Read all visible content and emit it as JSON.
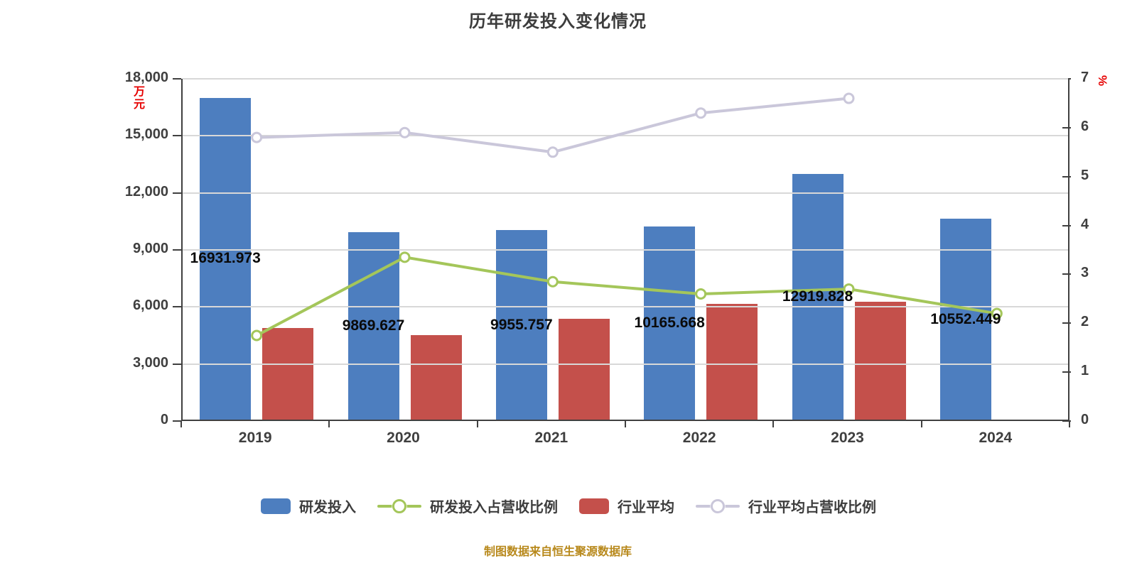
{
  "title": "历年研发投入变化情况",
  "source_note": "制图数据来自恒生聚源数据库",
  "units": {
    "left": "万元",
    "right": "%"
  },
  "colors": {
    "rd_bar": "#4d7ebf",
    "industry_bar": "#c4504b",
    "rd_ratio_line": "#a4c65a",
    "industry_ratio_line": "#cac7da",
    "axis_text": "#3f3f3f",
    "axis_line": "#404040",
    "grid_line": "#d8d8d8",
    "unit_text": "#e60000",
    "source_text": "#b8891c",
    "bar_label_text": "#0a0a0a"
  },
  "legend": [
    {
      "label": "研发投入",
      "swatch": "bar",
      "color": "#4d7ebf"
    },
    {
      "label": "研发投入占营收比例",
      "swatch": "line",
      "color": "#a4c65a"
    },
    {
      "label": "行业平均",
      "swatch": "bar",
      "color": "#c4504b"
    },
    {
      "label": "行业平均占营收比例",
      "swatch": "line",
      "color": "#cac7da"
    }
  ],
  "chart_data": {
    "type": "bar",
    "subtype": "grouped bars with two overlay line series on secondary axis",
    "title": "历年研发投入变化情况",
    "categories": [
      "2019",
      "2020",
      "2021",
      "2022",
      "2023",
      "2024"
    ],
    "series": [
      {
        "name": "研发投入",
        "kind": "bar",
        "axis": "left",
        "color": "#4d7ebf",
        "values": [
          16931.973,
          9869.627,
          9955.757,
          10165.668,
          12919.828,
          10552.449
        ],
        "labels": [
          "16931.973",
          "9869.627",
          "9955.757",
          "10165.668",
          "12919.828",
          "10552.449"
        ]
      },
      {
        "name": "行业平均",
        "kind": "bar",
        "axis": "left",
        "color": "#c4504b",
        "values": [
          4800,
          4450,
          5300,
          6100,
          6200,
          null
        ],
        "note": "no data label shown; values estimated from gridlines; no bar for 2024"
      },
      {
        "name": "研发投入占营收比例",
        "kind": "line",
        "axis": "right",
        "color": "#a4c65a",
        "values": [
          1.75,
          3.35,
          2.85,
          2.6,
          2.7,
          2.2
        ],
        "note": "values estimated from right axis"
      },
      {
        "name": "行业平均占营收比例",
        "kind": "line",
        "axis": "right",
        "color": "#cac7da",
        "values": [
          5.8,
          5.9,
          5.5,
          6.3,
          6.6,
          null
        ],
        "note": "values estimated from right axis; no point for 2024"
      }
    ],
    "left_axis": {
      "unit": "万元",
      "min": 0,
      "max": 18000,
      "step": 3000,
      "tick_labels": [
        "0",
        "3,000",
        "6,000",
        "9,000",
        "12,000",
        "15,000",
        "18,000"
      ]
    },
    "right_axis": {
      "unit": "%",
      "min": 0,
      "max": 7,
      "step": 1,
      "tick_labels": [
        "0",
        "1",
        "2",
        "3",
        "4",
        "5",
        "6",
        "7"
      ]
    },
    "grid": "horizontal gridlines at left-axis ticks, drawn over bars",
    "legend_position": "bottom",
    "bar_value_label_position": "centered horizontally on blue bar at half bar height"
  }
}
